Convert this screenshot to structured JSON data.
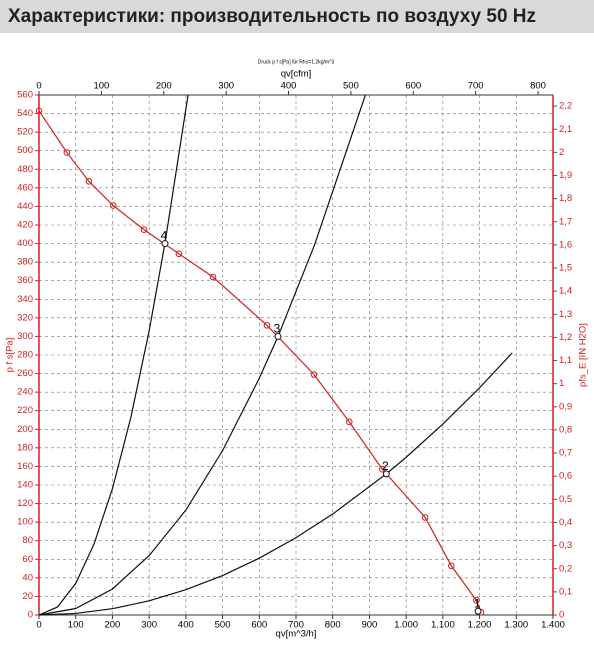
{
  "header": {
    "title": "Характеристики: производительность по воздуху 50 Hz"
  },
  "chart_data": {
    "type": "line",
    "subtitle": "Druck p f s[Pa] für Rho=1,2kg/m^3",
    "x_label": "qv[m^3/h]",
    "x2_label": "qv[cfm]",
    "y_label": "p f s[Pa]",
    "y2_label": "pfs_E [IN H2O]",
    "xlim": [
      0,
      1400
    ],
    "xticks": [
      0,
      100,
      200,
      300,
      400,
      500,
      600,
      700,
      800,
      900,
      {
        "value": 1000,
        "label": "1.000"
      },
      {
        "value": 1100,
        "label": "1.100"
      },
      {
        "value": 1200,
        "label": "1.200"
      },
      {
        "value": 1300,
        "label": "1.300"
      },
      {
        "value": 1400,
        "label": "1.400"
      }
    ],
    "x2lim": [
      0,
      824
    ],
    "x2ticks": [
      0,
      100,
      200,
      300,
      400,
      500,
      600,
      700,
      800
    ],
    "ylim": [
      0,
      560
    ],
    "yticks": [
      0,
      20,
      40,
      60,
      80,
      100,
      120,
      140,
      160,
      180,
      200,
      220,
      240,
      260,
      280,
      300,
      320,
      340,
      360,
      380,
      400,
      420,
      440,
      460,
      480,
      500,
      520,
      540,
      560
    ],
    "y2lim": [
      0,
      2.248
    ],
    "y2ticks": [
      0,
      {
        "value": 0.1,
        "label": "0,1"
      },
      {
        "value": 0.2,
        "label": "0,2"
      },
      {
        "value": 0.3,
        "label": "0,3"
      },
      {
        "value": 0.4,
        "label": "0,4"
      },
      {
        "value": 0.5,
        "label": "0,5"
      },
      {
        "value": 0.6,
        "label": "0,6"
      },
      {
        "value": 0.7,
        "label": "0,7"
      },
      {
        "value": 0.8,
        "label": "0,8"
      },
      {
        "value": 0.9,
        "label": "0,9"
      },
      1,
      {
        "value": 1.1,
        "label": "1,1"
      },
      {
        "value": 1.2,
        "label": "1,2"
      },
      {
        "value": 1.3,
        "label": "1,3"
      },
      {
        "value": 1.4,
        "label": "1,4"
      },
      {
        "value": 1.5,
        "label": "1,5"
      },
      {
        "value": 1.6,
        "label": "1,6"
      },
      {
        "value": 1.7,
        "label": "1,7"
      },
      {
        "value": 1.8,
        "label": "1,8"
      },
      {
        "value": 1.9,
        "label": "1,9"
      },
      2,
      {
        "value": 2.1,
        "label": "2,1"
      },
      {
        "value": 2.2,
        "label": "2,2"
      }
    ],
    "grid": true,
    "series": [
      {
        "color": "#d42020",
        "markers": true,
        "x": [
          0,
          76,
          136,
          202,
          286,
          381,
          474,
          621,
          749,
          845,
          935,
          1052,
          1123,
          1191,
          1204
        ],
        "values": [
          543,
          498,
          467,
          441,
          415,
          389,
          364,
          312,
          259,
          208,
          157,
          105,
          53,
          16,
          3
        ]
      },
      {
        "color": "#111111",
        "markers": false,
        "x": [
          0,
          50,
          100,
          150,
          200,
          250,
          300,
          343,
          406
        ],
        "values": [
          0,
          8.5,
          34,
          76.5,
          136,
          212.5,
          306,
          400,
          560
        ]
      },
      {
        "color": "#111111",
        "markers": false,
        "x": [
          0,
          100,
          200,
          300,
          400,
          500,
          600,
          651,
          750,
          889
        ],
        "values": [
          0,
          7,
          28,
          64,
          113,
          177,
          255,
          300,
          398,
          560
        ]
      },
      {
        "color": "#111111",
        "markers": false,
        "x": [
          0,
          100,
          200,
          300,
          400,
          500,
          600,
          700,
          800,
          946,
          1000,
          1100,
          1200,
          1289
        ],
        "values": [
          0,
          1.7,
          6.8,
          15.3,
          27.2,
          42.5,
          61.2,
          83.3,
          108.7,
          152,
          169.9,
          205.6,
          244.7,
          282.3
        ]
      }
    ],
    "points": {
      "x": [
        343,
        651,
        946,
        1196
      ],
      "values": [
        400,
        300,
        152,
        4
      ],
      "labels": [
        "4",
        "3",
        "2",
        "1"
      ]
    }
  }
}
